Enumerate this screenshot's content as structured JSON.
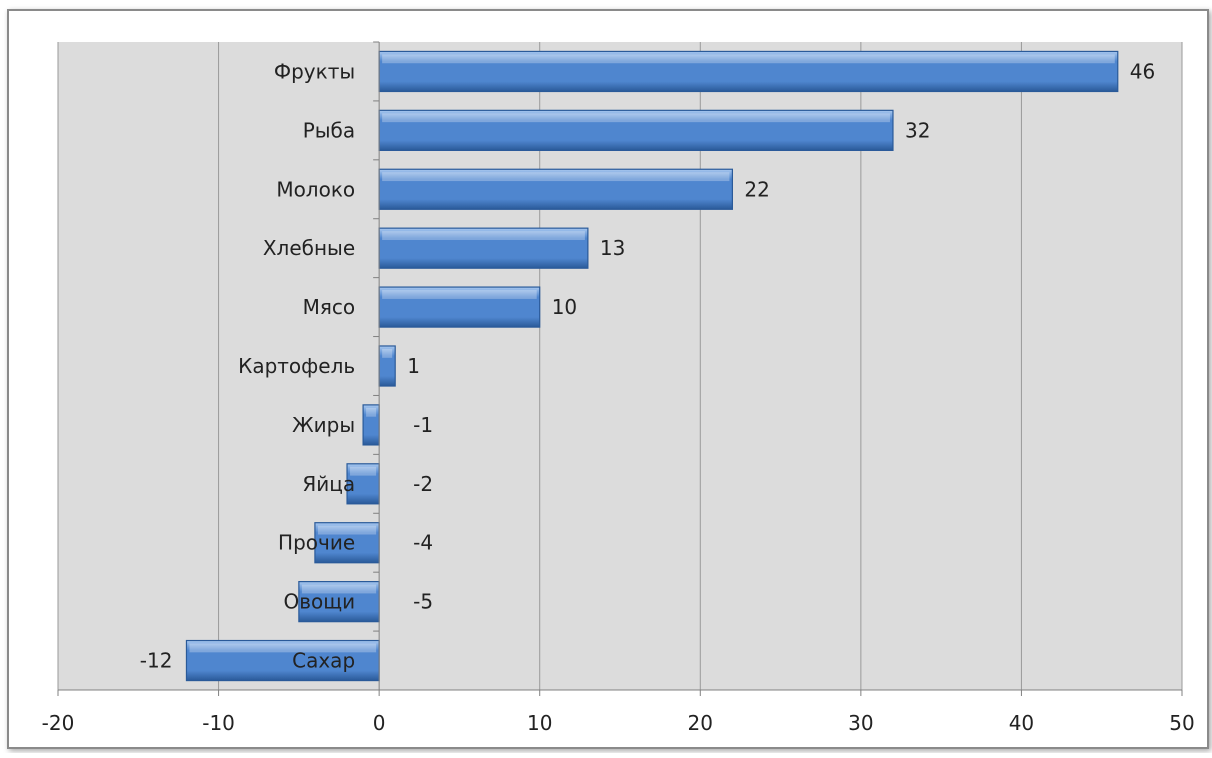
{
  "chart_data": {
    "type": "bar",
    "orientation": "horizontal",
    "title": "",
    "xlabel": "",
    "ylabel": "",
    "categories": [
      "Фрукты",
      "Рыба",
      "Молоко",
      "Хлебные",
      "Мясо",
      "Картофель",
      "Жиры",
      "Яйца",
      "Прочие",
      "Овощи",
      "Сахар"
    ],
    "values": [
      46,
      32,
      22,
      13,
      10,
      1,
      -1,
      -2,
      -4,
      -5,
      -12
    ],
    "data_labels": [
      "46",
      "32",
      "22",
      "13",
      "10",
      "1",
      "-1",
      "-2",
      "-4",
      "-5",
      "-12"
    ],
    "xlim": [
      -20,
      50
    ],
    "x_ticks": [
      -20,
      -10,
      0,
      10,
      20,
      30,
      40,
      50
    ],
    "x_tick_labels": [
      "-20",
      "-10",
      "0",
      "10",
      "20",
      "30",
      "40",
      "50"
    ],
    "grid": "vertical",
    "legend": "none",
    "colors": {
      "bar": "#4f86cf",
      "bar_light": "#a9c8ef",
      "bar_dark": "#2a5a99",
      "plot_background": "#dcdcdc",
      "gridline": "#9a9a9a",
      "frame_border": "#8a8a8a"
    }
  }
}
